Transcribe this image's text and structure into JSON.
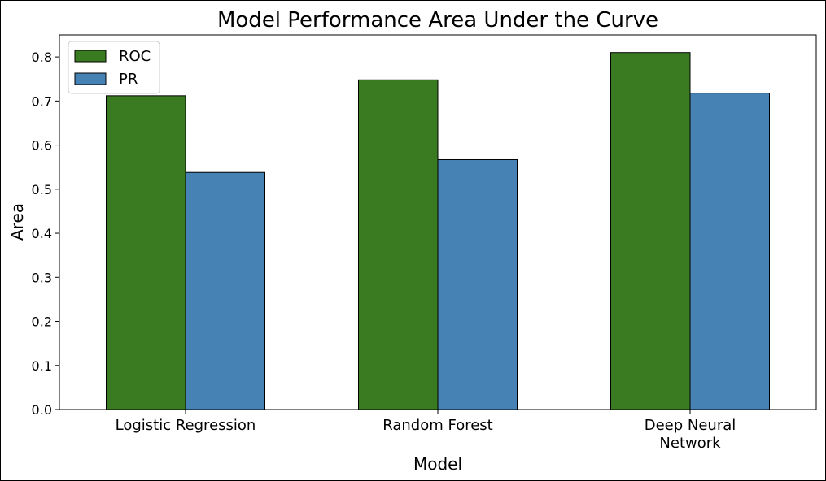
{
  "chart_data": {
    "type": "bar",
    "title": "Model Performance Area Under the Curve",
    "xlabel": "Model",
    "ylabel": "Area",
    "categories": [
      [
        "Logistic Regression"
      ],
      [
        "Random Forest"
      ],
      [
        "Deep Neural",
        "Network"
      ]
    ],
    "series": [
      {
        "name": "ROC",
        "color": "#3a7b22",
        "values": [
          0.712,
          0.748,
          0.81
        ]
      },
      {
        "name": "PR",
        "color": "#4682b4",
        "values": [
          0.538,
          0.567,
          0.718
        ]
      }
    ],
    "ylim": [
      0,
      0.85
    ],
    "yticks": [
      "0.0",
      "0.1",
      "0.2",
      "0.3",
      "0.4",
      "0.5",
      "0.6",
      "0.7",
      "0.8"
    ],
    "grid": false,
    "legend_position": "top-left"
  }
}
